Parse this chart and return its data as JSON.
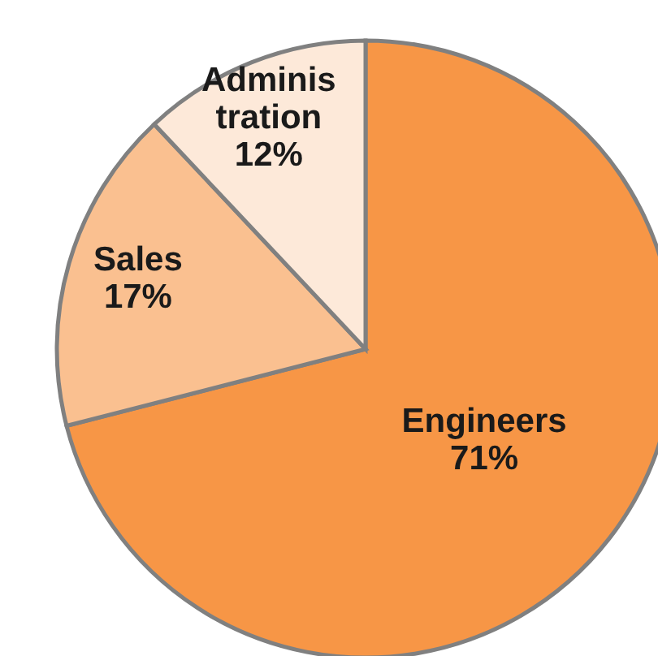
{
  "chart_data": {
    "type": "pie",
    "categories": [
      "Engineers",
      "Sales",
      "Administration"
    ],
    "values": [
      71,
      17,
      12
    ],
    "colors": [
      "#f79646",
      "#fac090",
      "#fde9d9"
    ],
    "value_labels": [
      "71%",
      "17%",
      "12%"
    ]
  }
}
